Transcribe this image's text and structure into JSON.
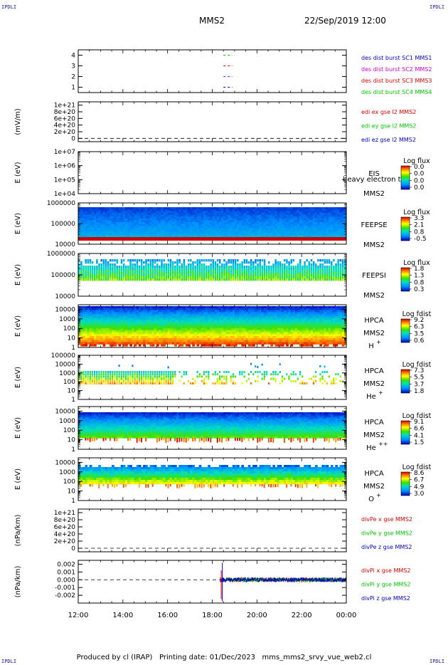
{
  "header": {
    "corner_tag": "IPDLI",
    "spacecraft": "MMS2",
    "datetime": "22/Sep/2019 12:00"
  },
  "footer": {
    "producer": "Produced by cl (IRAP)",
    "print_date": "Printing date: 01/Dec/2023",
    "script": "mms_mms2_srvy_vue_web2.cl"
  },
  "time_axis": {
    "ticks": [
      "12:00",
      "14:00",
      "16:00",
      "18:00",
      "20:00",
      "22:00",
      "00:00"
    ],
    "range_hours": [
      12,
      24
    ]
  },
  "chart_data": [
    {
      "type": "line",
      "id": "burst",
      "ylim": [
        0.5,
        4.5
      ],
      "ytick_labels": [
        "1",
        "2",
        "3",
        "4"
      ],
      "ytick_values": [
        1,
        2,
        3,
        4
      ],
      "series": [
        {
          "name": "des dist burst SC1 MMS1",
          "color": "#0000c8",
          "y": 1,
          "x": [
            18.5,
            18.9
          ]
        },
        {
          "name": "des dist burst SC2 MMS2",
          "color": "#d200d2",
          "y": 2,
          "x": [
            18.5,
            18.9
          ]
        },
        {
          "name": "des dist burst SC3 MMS3",
          "color": "#e00000",
          "y": 3,
          "x": [
            18.5,
            18.9
          ]
        },
        {
          "name": "des dist burst SC4 MMS4",
          "color": "#00c800",
          "y": 4,
          "x": [
            18.5,
            18.9
          ]
        }
      ]
    },
    {
      "type": "line",
      "id": "edi",
      "ylabel": "(mV/m)",
      "ylim": [
        -1e+20,
        1.1e+21
      ],
      "ytick_labels": [
        "0",
        "2e+20",
        "4e+20",
        "6e+20",
        "8e+20",
        "1e+21"
      ],
      "ytick_values": [
        0,
        2e+20,
        4e+20,
        6e+20,
        8e+20,
        1e+21
      ],
      "zero_line": true,
      "series": [
        {
          "name": "edi ex gse l2 MMS2",
          "color": "#e00000"
        },
        {
          "name": "edi ey gse l2 MMS2",
          "color": "#00c800"
        },
        {
          "name": "edi ez gse l2 MMS2",
          "color": "#0000c8"
        }
      ]
    },
    {
      "type": "heatmap",
      "id": "eis",
      "ylabel": "E (eV)",
      "scale": "log",
      "ylim": [
        10000.0,
        10000000.0
      ],
      "ytick_labels": [
        "1e+04",
        "1e+05",
        "1e+06",
        "1e+07"
      ],
      "ytick_values": [
        10000.0,
        100000.0,
        1000000.0,
        10000000.0
      ],
      "instrument": "EIS",
      "extra_label": "heavy electron to",
      "sc": "MMS2",
      "colorbar_title": "Log flux",
      "colorbar_labels": [
        "0.0",
        "0.0",
        "0.0",
        "0.0"
      ],
      "fill": "none"
    },
    {
      "type": "heatmap",
      "id": "feepse",
      "ylabel": "E (eV)",
      "scale": "log",
      "ylim": [
        10000.0,
        1000000.0
      ],
      "ytick_labels": [
        "10000",
        "100000",
        "1000000"
      ],
      "ytick_values": [
        10000.0,
        100000.0,
        1000000.0
      ],
      "instrument": "FEEPSE",
      "sc": "MMS2",
      "colorbar_title": "Log flux",
      "colorbar_labels": [
        "3.3",
        "2.1",
        "0.8",
        "-0.5"
      ],
      "fill": "feepse"
    },
    {
      "type": "heatmap",
      "id": "feepsi",
      "ylabel": "E (eV)",
      "scale": "log",
      "ylim": [
        10000.0,
        1000000.0
      ],
      "ytick_labels": [
        "10000",
        "100000",
        "1000000"
      ],
      "ytick_values": [
        10000.0,
        100000.0,
        1000000.0
      ],
      "instrument": "FEEPSI",
      "sc": "MMS2",
      "colorbar_title": "Log flux",
      "colorbar_labels": [
        "1.8",
        "1.3",
        "0.8",
        "0.3"
      ],
      "fill": "feepsi"
    },
    {
      "type": "heatmap",
      "id": "hpca_h",
      "ylabel": "E (eV)",
      "scale": "log",
      "ylim": [
        1,
        30000.0
      ],
      "ytick_labels": [
        "1",
        "10",
        "100",
        "1000",
        "10000"
      ],
      "ytick_values": [
        1,
        10,
        100,
        1000,
        10000
      ],
      "instrument": "HPCA",
      "sc": "MMS2",
      "species": "H",
      "species_sup": "+",
      "colorbar_title": "Log fdist",
      "colorbar_labels": [
        "9.2",
        "6.3",
        "3.5",
        "0.6"
      ],
      "fill": "hpca_h"
    },
    {
      "type": "heatmap",
      "id": "hpca_he1",
      "ylabel": "E (eV)",
      "scale": "log",
      "ylim": [
        1,
        100000.0
      ],
      "ytick_labels": [
        "1",
        "10",
        "100",
        "1000",
        "10000",
        "100000"
      ],
      "ytick_values": [
        1,
        10,
        100,
        1000,
        10000,
        100000
      ],
      "instrument": "HPCA",
      "sc": "MMS2",
      "species": "He",
      "species_sup": "+",
      "colorbar_title": "Log fdist",
      "colorbar_labels": [
        "7.3",
        "5.5",
        "3.7",
        "1.8"
      ],
      "fill": "hpca_he1"
    },
    {
      "type": "heatmap",
      "id": "hpca_he2",
      "ylabel": "E (eV)",
      "scale": "log",
      "ylim": [
        1,
        30000.0
      ],
      "ytick_labels": [
        "1",
        "10",
        "100",
        "1000",
        "10000"
      ],
      "ytick_values": [
        1,
        10,
        100,
        1000,
        10000
      ],
      "instrument": "HPCA",
      "sc": "MMS2",
      "species": "He",
      "species_sup": "++",
      "colorbar_title": "Log fdist",
      "colorbar_labels": [
        "9.1",
        "6.6",
        "4.1",
        "1.5"
      ],
      "fill": "hpca_he2"
    },
    {
      "type": "heatmap",
      "id": "hpca_o",
      "ylabel": "E (eV)",
      "scale": "log",
      "ylim": [
        1,
        30000.0
      ],
      "ytick_labels": [
        "1",
        "10",
        "100",
        "1000",
        "10000"
      ],
      "ytick_values": [
        1,
        10,
        100,
        1000,
        10000
      ],
      "instrument": "HPCA",
      "sc": "MMS2",
      "species": "O",
      "species_sup": "+",
      "colorbar_title": "Log fdist",
      "colorbar_labels": [
        "8.6",
        "6.7",
        "4.9",
        "3.0"
      ],
      "fill": "hpca_o"
    },
    {
      "type": "line",
      "id": "divpe",
      "ylabel": "(nPa/km)",
      "ylim": [
        -1e+20,
        1.1e+21
      ],
      "ytick_labels": [
        "0",
        "2e+20",
        "4e+20",
        "6e+20",
        "8e+20",
        "1e+21"
      ],
      "ytick_values": [
        0,
        2e+20,
        4e+20,
        6e+20,
        8e+20,
        1e+21
      ],
      "zero_line": true,
      "series": [
        {
          "name": "divPe x gse MMS2",
          "color": "#e00000"
        },
        {
          "name": "divPe y gse MMS2",
          "color": "#00c800"
        },
        {
          "name": "divPe z gse MMS2",
          "color": "#0000c8"
        }
      ]
    },
    {
      "type": "line",
      "id": "divpi",
      "ylabel": "(nPa/km)",
      "ylim": [
        -0.003,
        0.0025
      ],
      "ytick_labels": [
        "-0.002",
        "-0.001",
        "0.000",
        "0.001",
        "0.002"
      ],
      "ytick_values": [
        -0.002,
        -0.001,
        0,
        0.001,
        0.002
      ],
      "zero_line": true,
      "data_start_hour": 18.35,
      "amplitude": 0.0003,
      "series": [
        {
          "name": "divPi x gse MMS2",
          "color": "#e00000"
        },
        {
          "name": "divPi y gse MMS2",
          "color": "#00c800"
        },
        {
          "name": "divPi z gse MMS2",
          "color": "#0000c8"
        }
      ]
    }
  ]
}
